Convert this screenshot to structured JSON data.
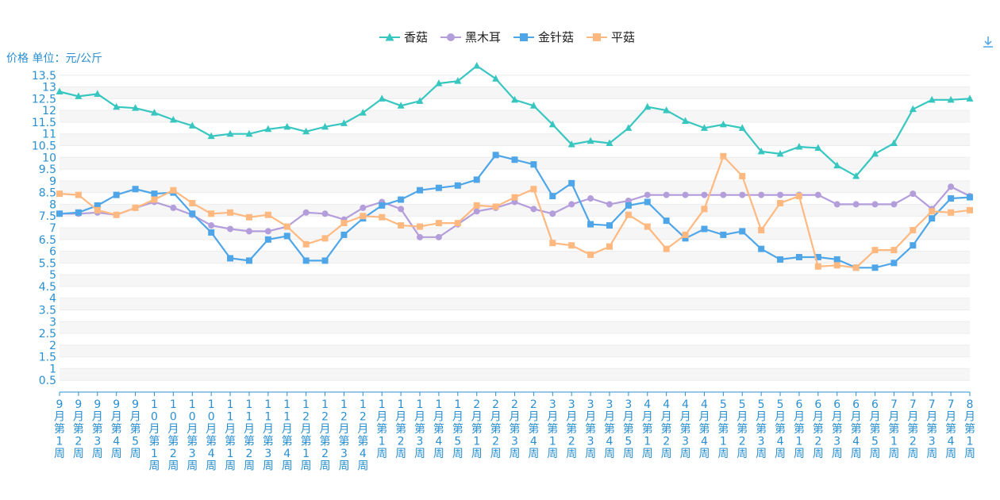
{
  "unit_label": "价格 单位：元/公斤",
  "toolbar": {
    "download_icon": "download-icon"
  },
  "chart_data": {
    "type": "line",
    "title": "",
    "xlabel": "",
    "ylabel": "价格 单位：元/公斤",
    "ylim": [
      0,
      14
    ],
    "yticks": [
      0.5,
      1,
      1.5,
      2,
      2.5,
      3,
      3.5,
      4,
      4.5,
      5,
      5.5,
      6,
      6.5,
      7,
      7.5,
      8,
      8.5,
      9,
      9.5,
      10,
      10.5,
      11,
      11.5,
      12,
      12.5,
      13,
      13.5
    ],
    "grid": true,
    "legend_position": "top-center",
    "categories": [
      "9月第1周",
      "9月第2周",
      "9月第3周",
      "9月第4周",
      "9月第5周",
      "10月第1周",
      "10月第2周",
      "10月第3周",
      "10月第4周",
      "11月第1周",
      "11月第2周",
      "11月第3周",
      "11月第4周",
      "12月第1周",
      "12月第2周",
      "12月第3周",
      "12月第4周",
      "1月第1周",
      "1月第2周",
      "1月第3周",
      "1月第4周",
      "1月第5周",
      "2月第1周",
      "2月第2周",
      "2月第3周",
      "2月第4周",
      "3月第1周",
      "3月第2周",
      "3月第3周",
      "3月第4周",
      "3月第5周",
      "4月第1周",
      "4月第2周",
      "4月第3周",
      "4月第4周",
      "5月第1周",
      "5月第2周",
      "5月第3周",
      "5月第4周",
      "6月第1周",
      "6月第2周",
      "6月第3周",
      "6月第4周",
      "6月第5周",
      "7月第1周",
      "7月第2周",
      "7月第3周",
      "7月第4周",
      "8月第1周"
    ],
    "series": [
      {
        "name": "香菇",
        "color": "#37c6c0",
        "marker": "triangle",
        "values": [
          12.8,
          12.6,
          12.7,
          12.15,
          12.1,
          11.9,
          11.6,
          11.35,
          10.9,
          11.0,
          11.0,
          11.2,
          11.3,
          11.1,
          11.3,
          11.45,
          11.9,
          12.5,
          12.2,
          12.4,
          13.15,
          13.25,
          13.9,
          13.35,
          12.45,
          12.2,
          11.4,
          10.55,
          10.7,
          10.6,
          11.25,
          12.15,
          12.0,
          11.55,
          11.25,
          11.4,
          11.25,
          10.25,
          10.15,
          10.45,
          10.4,
          9.65,
          9.2,
          10.15,
          10.6,
          12.05,
          12.45,
          12.45,
          12.5
        ]
      },
      {
        "name": "黑木耳",
        "color": "#b39ddb",
        "marker": "circle",
        "values": [
          7.6,
          7.6,
          7.65,
          7.55,
          7.85,
          8.1,
          7.85,
          7.55,
          7.1,
          6.95,
          6.85,
          6.85,
          7.05,
          7.65,
          7.6,
          7.35,
          7.85,
          8.1,
          7.8,
          6.6,
          6.6,
          7.15,
          7.7,
          7.85,
          8.1,
          7.8,
          7.6,
          8.0,
          8.25,
          8.0,
          8.15,
          8.4,
          8.4,
          8.4,
          8.4,
          8.4,
          8.4,
          8.4,
          8.4,
          8.4,
          8.4,
          8.0,
          8.0,
          8.0,
          8.0,
          8.45,
          7.8,
          8.75,
          8.35
        ]
      },
      {
        "name": "金针菇",
        "color": "#4ea6e8",
        "marker": "square",
        "values": [
          7.6,
          7.65,
          7.95,
          8.4,
          8.65,
          8.45,
          8.5,
          7.6,
          6.8,
          5.7,
          5.6,
          6.5,
          6.65,
          5.6,
          5.6,
          6.7,
          7.4,
          7.95,
          8.2,
          8.6,
          8.7,
          8.8,
          9.05,
          10.1,
          9.9,
          9.7,
          8.35,
          8.9,
          7.15,
          7.1,
          7.95,
          8.1,
          7.3,
          6.55,
          6.95,
          6.7,
          6.85,
          6.1,
          5.65,
          5.75,
          5.75,
          5.65,
          5.3,
          5.3,
          5.5,
          6.25,
          7.4,
          8.25,
          8.3
        ]
      },
      {
        "name": "平菇",
        "color": "#ffb980",
        "marker": "square",
        "values": [
          8.45,
          8.4,
          7.75,
          7.55,
          7.85,
          8.2,
          8.6,
          8.05,
          7.6,
          7.65,
          7.45,
          7.55,
          7.05,
          6.3,
          6.55,
          7.2,
          7.5,
          7.45,
          7.1,
          7.05,
          7.2,
          7.2,
          7.95,
          7.9,
          8.3,
          8.65,
          6.35,
          6.25,
          5.85,
          6.2,
          7.55,
          7.05,
          6.1,
          6.7,
          7.8,
          10.05,
          9.2,
          6.9,
          8.05,
          8.35,
          5.35,
          5.4,
          5.3,
          6.05,
          6.05,
          6.9,
          7.7,
          7.65,
          7.75
        ]
      }
    ]
  }
}
